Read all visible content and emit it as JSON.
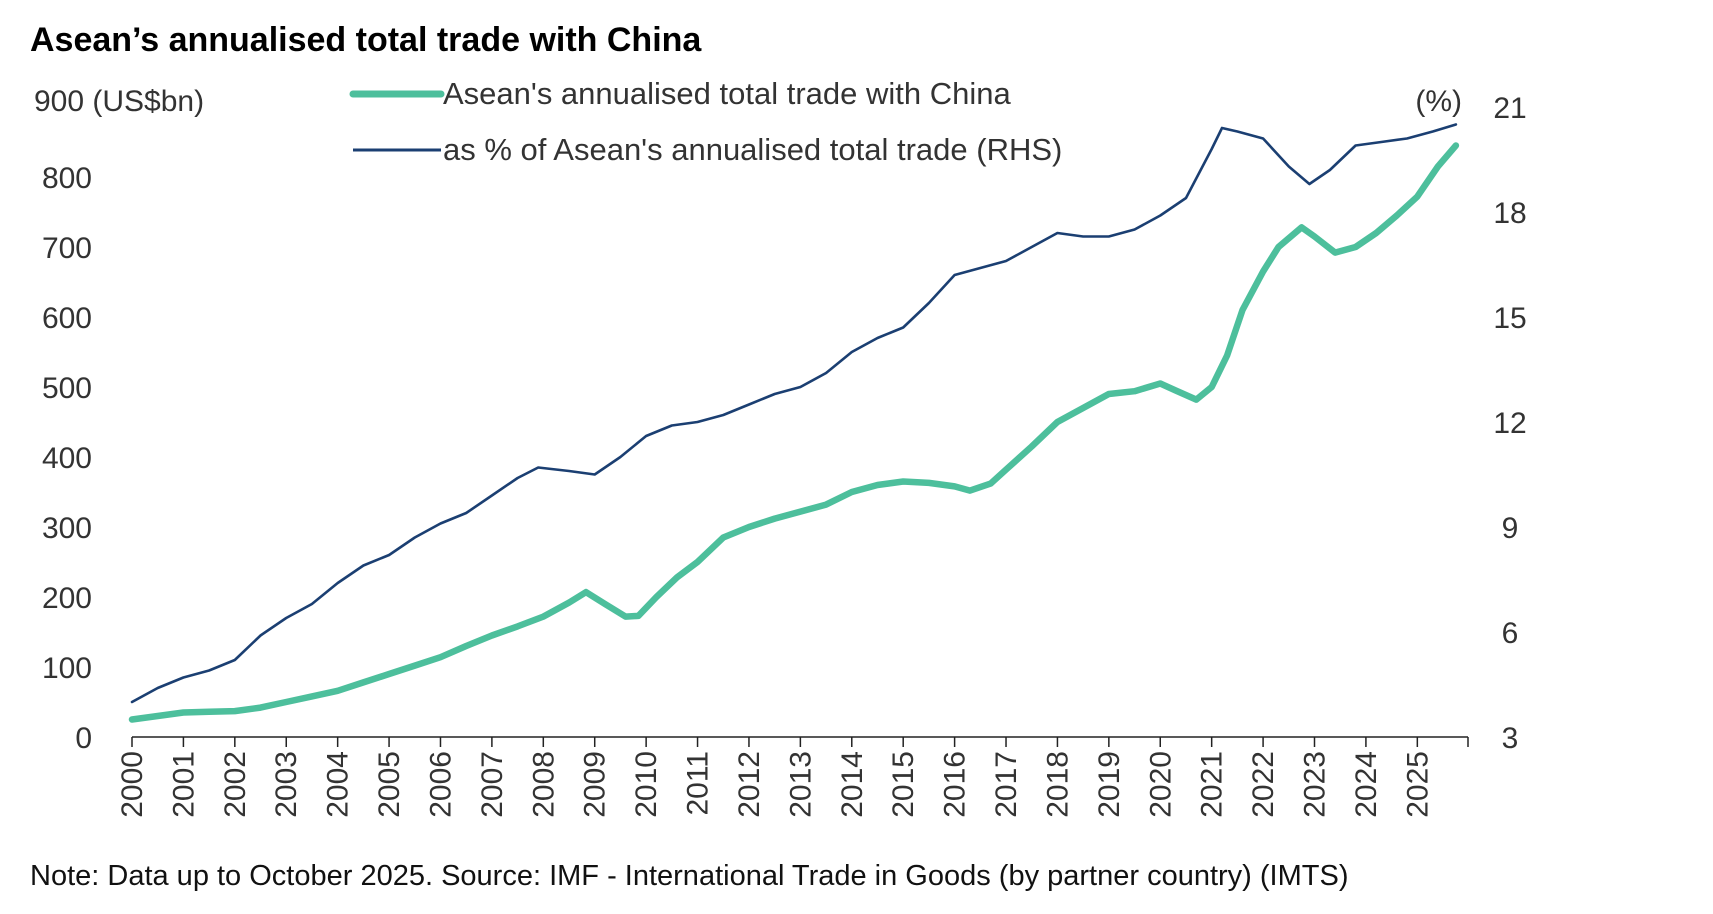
{
  "chart_data": {
    "type": "line",
    "title": "Asean’s annualised total trade with China",
    "note": "Note: Data up to October 2025. Source: IMF - International Trade in Goods (by partner country) (IMTS)",
    "left_axis": {
      "unit": "900 (US$bn)",
      "ticks": [
        "0",
        "100",
        "200",
        "300",
        "400",
        "500",
        "600",
        "700",
        "800"
      ],
      "ylim": [
        0,
        900
      ]
    },
    "right_axis": {
      "unit": "(%)",
      "ticks": [
        "3",
        "6",
        "9",
        "12",
        "15",
        "18",
        "21"
      ],
      "ylim": [
        3,
        21
      ]
    },
    "x_ticks": [
      "2000",
      "2001",
      "2002",
      "2003",
      "2004",
      "2005",
      "2006",
      "2007",
      "2008",
      "2009",
      "2010",
      "2011",
      "2012",
      "2013",
      "2014",
      "2015",
      "2016",
      "2017",
      "2018",
      "2019",
      "2020",
      "2021",
      "2022",
      "2023",
      "2024",
      "2025"
    ],
    "legend": {
      "placement": "top-center"
    },
    "series": [
      {
        "name": "Asean's annualised total trade with China",
        "axis": "left",
        "color": "#4dbf9c",
        "points": [
          [
            2000.0,
            25
          ],
          [
            2000.5,
            30
          ],
          [
            2001.0,
            35
          ],
          [
            2001.5,
            36
          ],
          [
            2002.0,
            37
          ],
          [
            2002.5,
            42
          ],
          [
            2003.0,
            50
          ],
          [
            2003.5,
            58
          ],
          [
            2004.0,
            66
          ],
          [
            2004.5,
            78
          ],
          [
            2005.0,
            90
          ],
          [
            2005.5,
            102
          ],
          [
            2006.0,
            114
          ],
          [
            2006.5,
            130
          ],
          [
            2007.0,
            145
          ],
          [
            2007.5,
            158
          ],
          [
            2008.0,
            172
          ],
          [
            2008.5,
            192
          ],
          [
            2008.83,
            207
          ],
          [
            2009.2,
            190
          ],
          [
            2009.6,
            172
          ],
          [
            2009.85,
            173
          ],
          [
            2010.2,
            200
          ],
          [
            2010.6,
            228
          ],
          [
            2011.0,
            250
          ],
          [
            2011.5,
            285
          ],
          [
            2012.0,
            300
          ],
          [
            2012.5,
            312
          ],
          [
            2013.0,
            322
          ],
          [
            2013.5,
            332
          ],
          [
            2014.0,
            350
          ],
          [
            2014.5,
            360
          ],
          [
            2015.0,
            365
          ],
          [
            2015.5,
            363
          ],
          [
            2016.0,
            358
          ],
          [
            2016.3,
            352
          ],
          [
            2016.7,
            362
          ],
          [
            2017.0,
            382
          ],
          [
            2017.5,
            415
          ],
          [
            2018.0,
            450
          ],
          [
            2018.5,
            470
          ],
          [
            2019.0,
            490
          ],
          [
            2019.5,
            494
          ],
          [
            2020.0,
            505
          ],
          [
            2020.3,
            495
          ],
          [
            2020.7,
            482
          ],
          [
            2021.0,
            500
          ],
          [
            2021.3,
            545
          ],
          [
            2021.6,
            610
          ],
          [
            2022.0,
            665
          ],
          [
            2022.3,
            700
          ],
          [
            2022.75,
            728
          ],
          [
            2023.0,
            715
          ],
          [
            2023.4,
            692
          ],
          [
            2023.8,
            700
          ],
          [
            2024.2,
            720
          ],
          [
            2024.6,
            745
          ],
          [
            2025.0,
            772
          ],
          [
            2025.4,
            815
          ],
          [
            2025.75,
            845
          ]
        ]
      },
      {
        "name": "as % of Asean's annualised total trade (RHS)",
        "axis": "right",
        "color": "#1b3f72",
        "points": [
          [
            2000.0,
            4.0
          ],
          [
            2000.5,
            4.4
          ],
          [
            2001.0,
            4.7
          ],
          [
            2001.5,
            4.9
          ],
          [
            2002.0,
            5.2
          ],
          [
            2002.5,
            5.9
          ],
          [
            2003.0,
            6.4
          ],
          [
            2003.5,
            6.8
          ],
          [
            2004.0,
            7.4
          ],
          [
            2004.5,
            7.9
          ],
          [
            2005.0,
            8.2
          ],
          [
            2005.5,
            8.7
          ],
          [
            2006.0,
            9.1
          ],
          [
            2006.5,
            9.4
          ],
          [
            2007.0,
            9.9
          ],
          [
            2007.5,
            10.4
          ],
          [
            2007.9,
            10.7
          ],
          [
            2008.5,
            10.6
          ],
          [
            2009.0,
            10.5
          ],
          [
            2009.5,
            11.0
          ],
          [
            2010.0,
            11.6
          ],
          [
            2010.5,
            11.9
          ],
          [
            2011.0,
            12.0
          ],
          [
            2011.5,
            12.2
          ],
          [
            2012.0,
            12.5
          ],
          [
            2012.5,
            12.8
          ],
          [
            2013.0,
            13.0
          ],
          [
            2013.5,
            13.4
          ],
          [
            2014.0,
            14.0
          ],
          [
            2014.5,
            14.4
          ],
          [
            2015.0,
            14.7
          ],
          [
            2015.5,
            15.4
          ],
          [
            2016.0,
            16.2
          ],
          [
            2016.5,
            16.4
          ],
          [
            2017.0,
            16.6
          ],
          [
            2017.5,
            17.0
          ],
          [
            2018.0,
            17.4
          ],
          [
            2018.5,
            17.3
          ],
          [
            2019.0,
            17.3
          ],
          [
            2019.5,
            17.5
          ],
          [
            2020.0,
            17.9
          ],
          [
            2020.5,
            18.4
          ],
          [
            2021.0,
            19.8
          ],
          [
            2021.2,
            20.4
          ],
          [
            2021.5,
            20.3
          ],
          [
            2022.0,
            20.1
          ],
          [
            2022.5,
            19.3
          ],
          [
            2022.9,
            18.8
          ],
          [
            2023.3,
            19.2
          ],
          [
            2023.8,
            19.9
          ],
          [
            2024.3,
            20.0
          ],
          [
            2024.8,
            20.1
          ],
          [
            2025.3,
            20.3
          ],
          [
            2025.75,
            20.5
          ]
        ]
      }
    ]
  }
}
